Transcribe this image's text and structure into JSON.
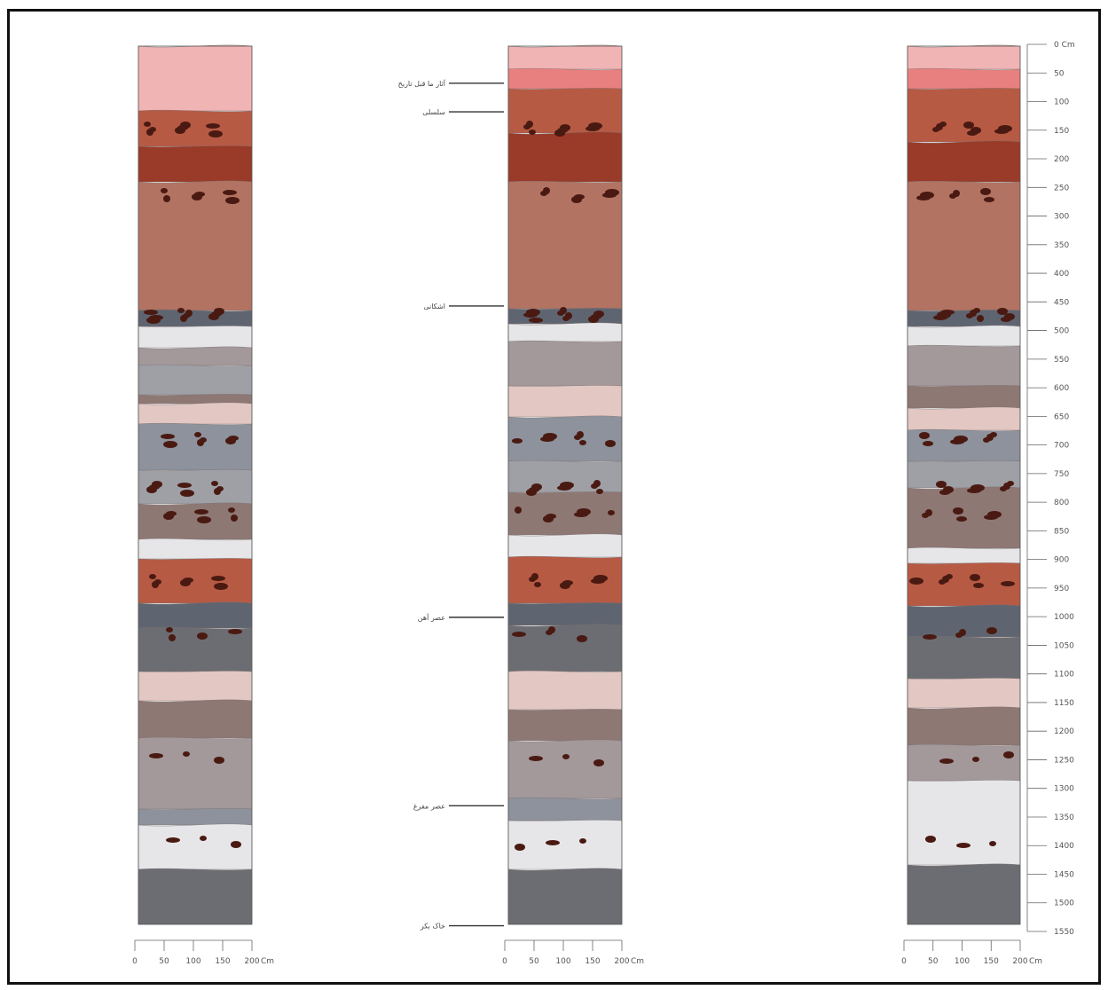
{
  "depth_scale": {
    "unit": "Cm",
    "ticks": [
      "0",
      "50",
      "100",
      "150",
      "200",
      "250",
      "300",
      "350",
      "400",
      "450",
      "500",
      "550",
      "600",
      "650",
      "700",
      "750",
      "800",
      "850",
      "900",
      "950",
      "1000",
      "1050",
      "1100",
      "1150",
      "1200",
      "1250",
      "1300",
      "1350",
      "1400",
      "1450",
      "1500",
      "1550"
    ]
  },
  "width_scale": {
    "unit": "Cm",
    "ticks": [
      "0",
      "50",
      "100",
      "150",
      "200"
    ]
  },
  "colors": {
    "pink_top": "#f0b4b4",
    "red_bright": "#e98080",
    "brown_red": "#b75a44",
    "dark_red": "#9a3a28",
    "reddish_brown_thick": "#b27362",
    "slate_dark": "#5f6570",
    "light_grey": "#e6e6e9",
    "mauve_grey": "#a3989a",
    "pale_pink": "#e2c7c2",
    "blue_grey": "#8d929c",
    "grey_mid": "#9ea0a6",
    "taupe": "#8e7874",
    "dark_grey": "#6c6d72",
    "nodule": "#4a1a12"
  },
  "middle_labels": [
    {
      "id": "label-1",
      "text": "آثار ما قبل تاریخ",
      "depth": 65
    },
    {
      "id": "label-2",
      "text": "سلسلی",
      "depth": 115
    },
    {
      "id": "label-3",
      "text": "اشکانی",
      "depth": 455
    },
    {
      "id": "label-4",
      "text": "عصر آهن",
      "depth": 1000
    },
    {
      "id": "label-5",
      "text": "عصر مفرغ",
      "depth": 1330
    },
    {
      "id": "label-6",
      "text": "خاک بکر",
      "depth": 1540
    }
  ]
}
